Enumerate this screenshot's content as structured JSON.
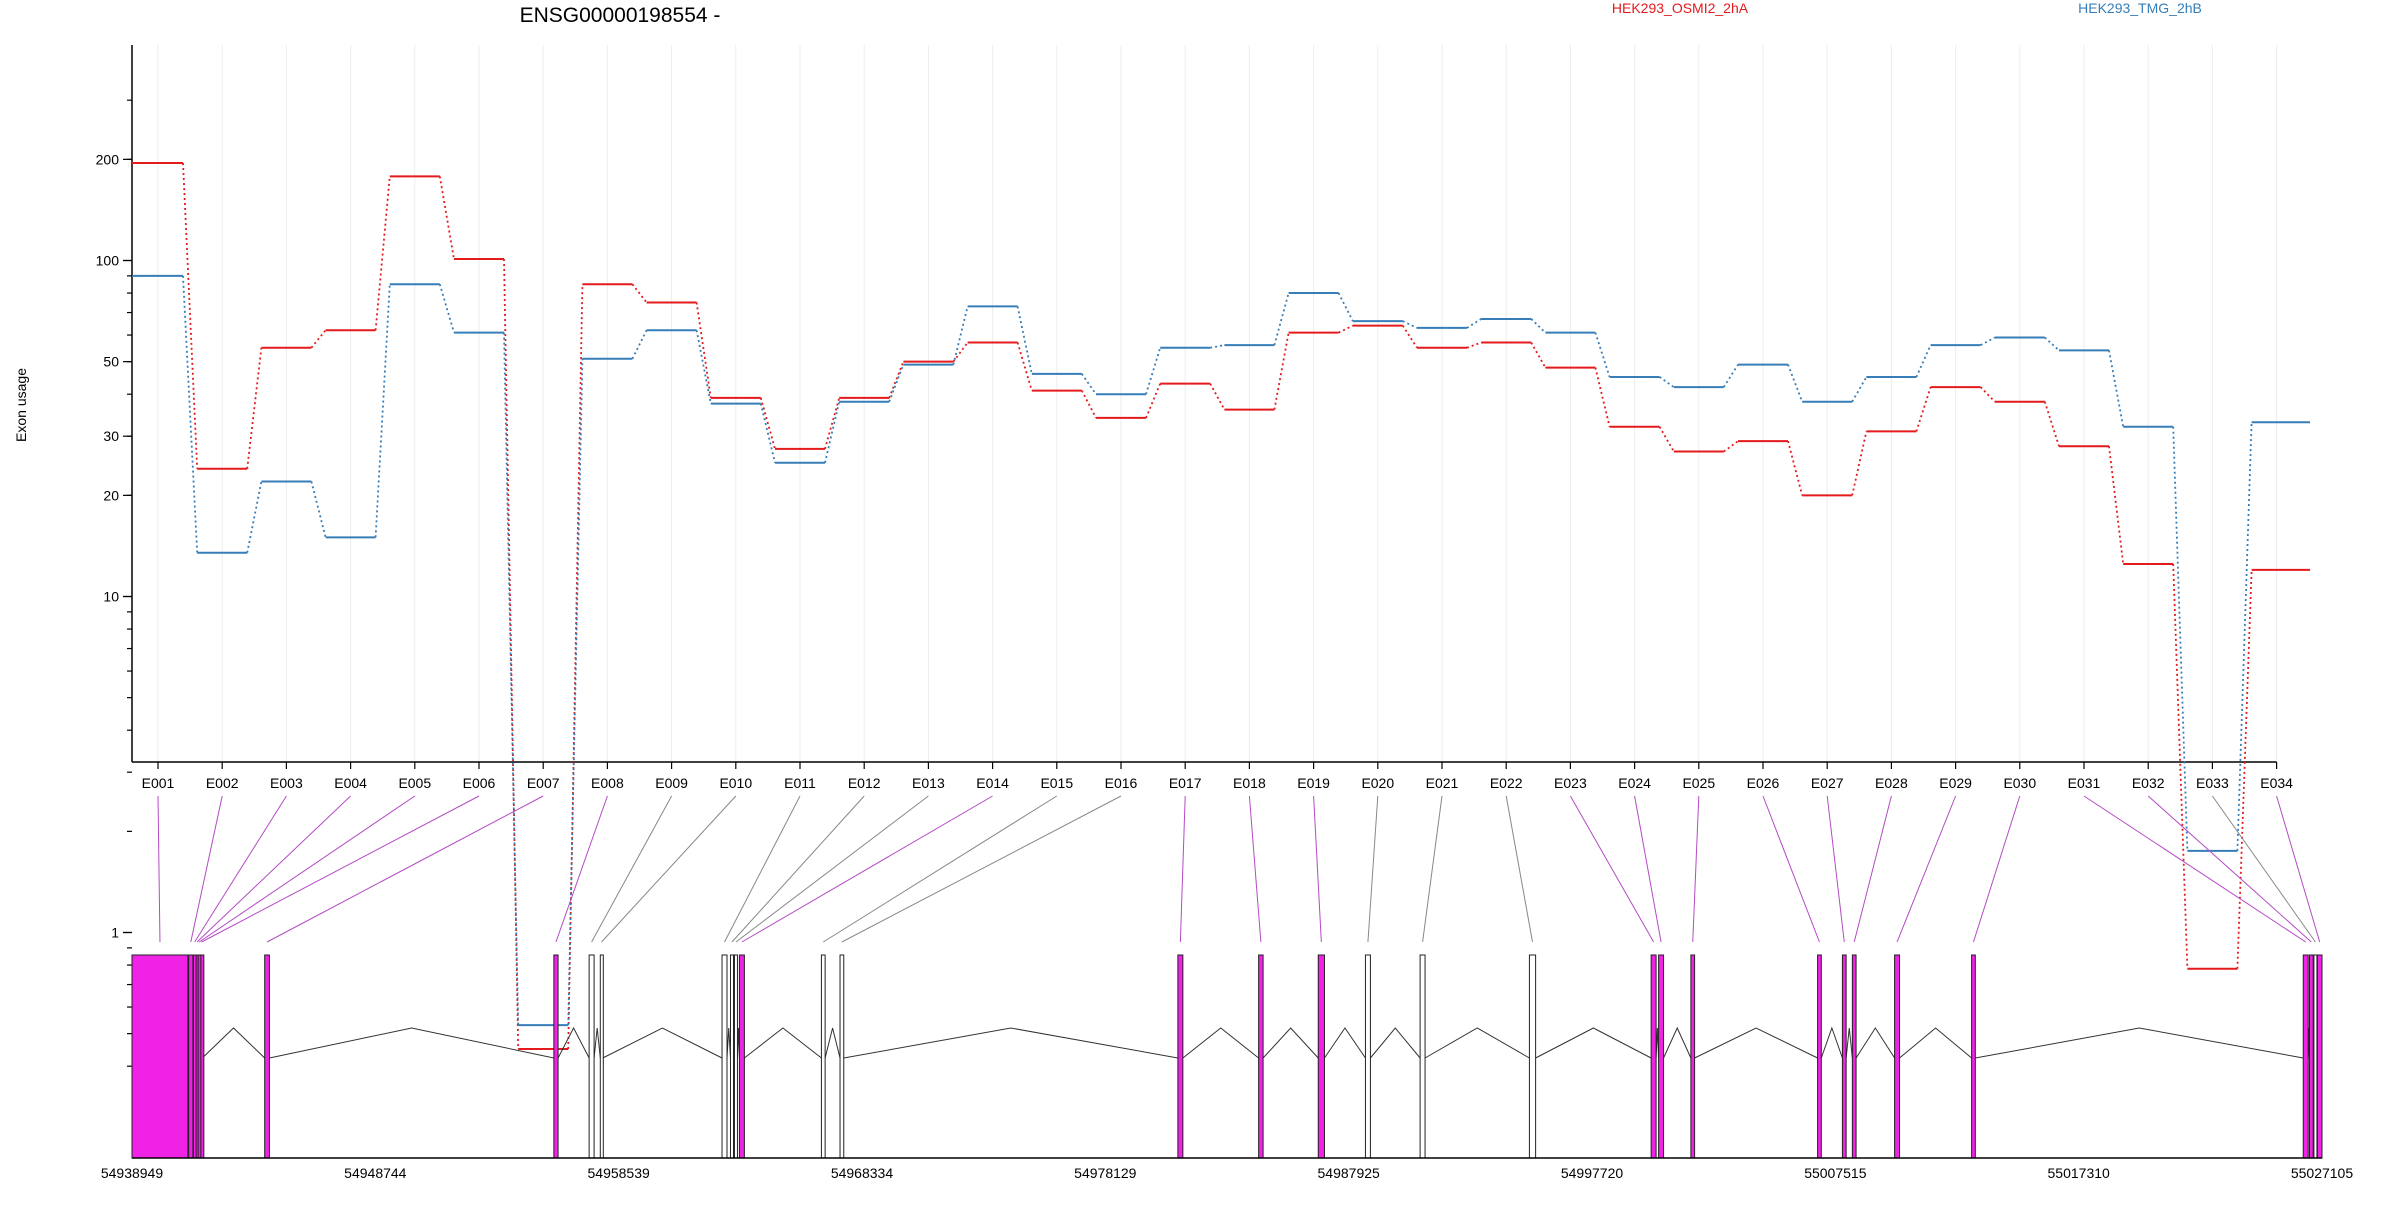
{
  "chart_data": {
    "type": "line",
    "title": "ENSG00000198554 -",
    "ylabel": "Exon usage",
    "yscale": "log",
    "ylim": [
      0.4,
      300
    ],
    "yticks": [
      1,
      10,
      20,
      30,
      50,
      100,
      200
    ],
    "categories": [
      "E001",
      "E002",
      "E003",
      "E004",
      "E005",
      "E006",
      "E007",
      "E008",
      "E009",
      "E010",
      "E011",
      "E012",
      "E013",
      "E014",
      "E015",
      "E016",
      "E017",
      "E018",
      "E019",
      "E020",
      "E021",
      "E022",
      "E023",
      "E024",
      "E025",
      "E026",
      "E027",
      "E028",
      "E029",
      "E030",
      "E031",
      "E032",
      "E033",
      "E034"
    ],
    "series": [
      {
        "name": "HEK293_OSMI2_2hA",
        "color": "#e41a1c",
        "values": [
          195,
          24,
          55,
          62,
          178,
          101,
          0.45,
          85,
          75,
          39,
          27.5,
          39,
          50,
          57,
          41,
          34,
          43,
          36,
          61,
          64,
          55,
          57,
          48,
          32,
          27,
          29,
          20,
          31,
          42,
          38,
          28,
          12.5,
          0.78,
          12
        ]
      },
      {
        "name": "HEK293_TMG_2hB",
        "color": "#377eb8",
        "values": [
          90,
          13.5,
          22,
          15,
          85,
          61,
          0.53,
          51,
          62,
          37.5,
          25,
          38,
          49,
          73,
          46,
          40,
          55,
          56,
          80,
          66,
          63,
          67,
          61,
          45,
          42,
          49,
          38,
          45,
          56,
          59,
          54,
          32,
          1.75,
          33
        ]
      }
    ],
    "gene_model": {
      "coordinates": [
        "54938949",
        "54948744",
        "54958539",
        "54968334",
        "54978129",
        "54987925",
        "54997720",
        "55007515",
        "55017310",
        "55027105"
      ],
      "exons": [
        {
          "id": "E001",
          "start": 54938949,
          "end": 54941200,
          "significant": true
        },
        {
          "id": "E002",
          "start": 54941230,
          "end": 54941400,
          "significant": true
        },
        {
          "id": "E003",
          "start": 54941420,
          "end": 54941520,
          "significant": true
        },
        {
          "id": "E004",
          "start": 54941530,
          "end": 54941600,
          "significant": true
        },
        {
          "id": "E005",
          "start": 54941610,
          "end": 54941700,
          "significant": true
        },
        {
          "id": "E006",
          "start": 54941720,
          "end": 54941780,
          "significant": true
        },
        {
          "id": "E007",
          "start": 54944290,
          "end": 54944480,
          "significant": true
        },
        {
          "id": "E008",
          "start": 54955930,
          "end": 54956100,
          "significant": true
        },
        {
          "id": "E009",
          "start": 54957350,
          "end": 54957550,
          "significant": false
        },
        {
          "id": "E010",
          "start": 54957800,
          "end": 54957900,
          "significant": false
        },
        {
          "id": "E011",
          "start": 54962700,
          "end": 54962900,
          "significant": false
        },
        {
          "id": "E012",
          "start": 54963040,
          "end": 54963160,
          "significant": false
        },
        {
          "id": "E013",
          "start": 54963200,
          "end": 54963320,
          "significant": false
        },
        {
          "id": "E014",
          "start": 54963400,
          "end": 54963600,
          "significant": true
        },
        {
          "id": "E015",
          "start": 54966700,
          "end": 54966850,
          "significant": false
        },
        {
          "id": "E016",
          "start": 54967450,
          "end": 54967600,
          "significant": false
        },
        {
          "id": "E017",
          "start": 54981050,
          "end": 54981250,
          "significant": true
        },
        {
          "id": "E018",
          "start": 54984300,
          "end": 54984480,
          "significant": true
        },
        {
          "id": "E019",
          "start": 54986700,
          "end": 54986950,
          "significant": true
        },
        {
          "id": "E020",
          "start": 54988600,
          "end": 54988800,
          "significant": false
        },
        {
          "id": "E021",
          "start": 54990800,
          "end": 54991000,
          "significant": false
        },
        {
          "id": "E022",
          "start": 54995200,
          "end": 54995450,
          "significant": false
        },
        {
          "id": "E023",
          "start": 55000100,
          "end": 55000300,
          "significant": true
        },
        {
          "id": "E024",
          "start": 55000400,
          "end": 55000600,
          "significant": true
        },
        {
          "id": "E025",
          "start": 55001700,
          "end": 55001850,
          "significant": true
        },
        {
          "id": "E026",
          "start": 55006800,
          "end": 55006950,
          "significant": true
        },
        {
          "id": "E027",
          "start": 55007800,
          "end": 55007950,
          "significant": true
        },
        {
          "id": "E028",
          "start": 55008200,
          "end": 55008350,
          "significant": true
        },
        {
          "id": "E029",
          "start": 55009900,
          "end": 55010100,
          "significant": true
        },
        {
          "id": "E030",
          "start": 55013000,
          "end": 55013150,
          "significant": true
        },
        {
          "id": "E031",
          "start": 55026350,
          "end": 55026550,
          "significant": true
        },
        {
          "id": "E032",
          "start": 55026600,
          "end": 55026750,
          "significant": true
        },
        {
          "id": "E033",
          "start": 55026780,
          "end": 55026900,
          "significant": false
        },
        {
          "id": "E034",
          "start": 55026920,
          "end": 55027105,
          "significant": true
        }
      ]
    }
  },
  "colors": {
    "exon_significant": "#f022e6",
    "exon_normal": "#ffffff",
    "connector_significant": "#b44bc4",
    "connector_normal": "#888888",
    "grid": "#ececf4"
  }
}
